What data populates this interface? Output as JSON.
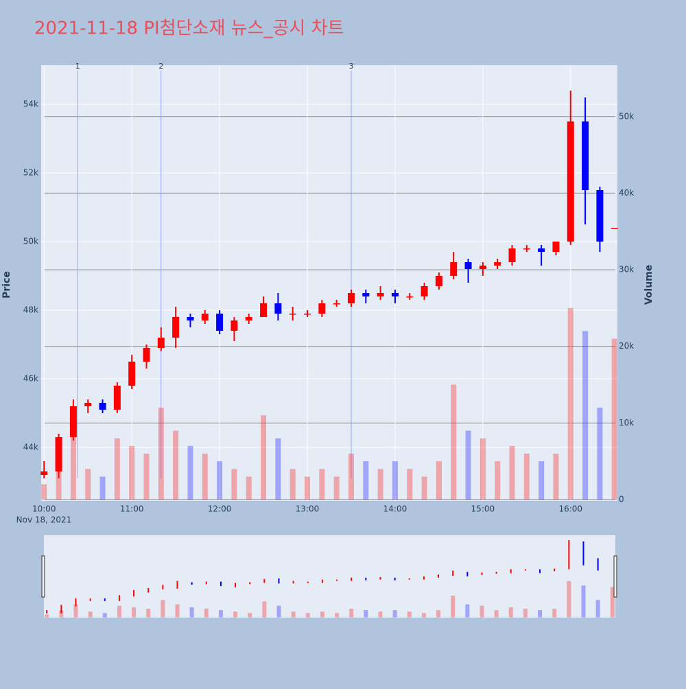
{
  "chart_data": {
    "type": "candlestick",
    "title": "2021-11-18 PI첨단소재 뉴스_공시 차트",
    "y_label": "Price",
    "y2_label": "Volume",
    "x_date_label": "Nov 18, 2021",
    "up_color": "#ff0000",
    "down_color": "#0000ff",
    "x": [
      "2021-11-18 10:00",
      "2021-11-18 10:10",
      "2021-11-18 10:20",
      "2021-11-18 10:30",
      "2021-11-18 10:40",
      "2021-11-18 10:50",
      "2021-11-18 11:00",
      "2021-11-18 11:10",
      "2021-11-18 11:20",
      "2021-11-18 11:30",
      "2021-11-18 11:40",
      "2021-11-18 11:50",
      "2021-11-18 12:00",
      "2021-11-18 12:10",
      "2021-11-18 12:20",
      "2021-11-18 12:30",
      "2021-11-18 12:40",
      "2021-11-18 12:50",
      "2021-11-18 13:00",
      "2021-11-18 13:10",
      "2021-11-18 13:20",
      "2021-11-18 13:30",
      "2021-11-18 13:40",
      "2021-11-18 13:50",
      "2021-11-18 14:00",
      "2021-11-18 14:10",
      "2021-11-18 14:20",
      "2021-11-18 14:30",
      "2021-11-18 14:40",
      "2021-11-18 14:50",
      "2021-11-18 15:00",
      "2021-11-18 15:10",
      "2021-11-18 15:20",
      "2021-11-18 15:30",
      "2021-11-18 15:40",
      "2021-11-18 15:50",
      "2021-11-18 16:00",
      "2021-11-18 16:10",
      "2021-11-18 16:20",
      "2021-11-18 16:30"
    ],
    "open": [
      43200,
      43300,
      44300,
      45200,
      45300,
      45100,
      45800,
      46500,
      46900,
      47200,
      47800,
      47700,
      47900,
      47400,
      47700,
      47800,
      48200,
      47900,
      47900,
      47900,
      48200,
      48200,
      48500,
      48400,
      48500,
      48400,
      48400,
      48700,
      49000,
      49400,
      49200,
      49300,
      49400,
      49800,
      49800,
      49700,
      50000,
      53500,
      51500,
      50400
    ],
    "high": [
      43600,
      44400,
      45400,
      45400,
      45400,
      45900,
      46700,
      47000,
      47500,
      48100,
      47900,
      48000,
      48000,
      47800,
      47900,
      48400,
      48500,
      48100,
      48000,
      48300,
      48300,
      48600,
      48600,
      48700,
      48600,
      48500,
      48800,
      49100,
      49700,
      49500,
      49400,
      49500,
      49900,
      49900,
      49900,
      50000,
      54400,
      54200,
      51600,
      50400
    ],
    "low": [
      43100,
      43100,
      44200,
      45000,
      45000,
      45000,
      45700,
      46300,
      46800,
      46900,
      47500,
      47600,
      47300,
      47100,
      47600,
      47800,
      47700,
      47700,
      47800,
      47800,
      48100,
      48100,
      48200,
      48300,
      48200,
      48300,
      48300,
      48600,
      48900,
      48800,
      49000,
      49200,
      49300,
      49700,
      49300,
      49600,
      49900,
      50500,
      49700,
      50400
    ],
    "close": [
      43300,
      44300,
      45200,
      45300,
      45100,
      45800,
      46500,
      46900,
      47200,
      47800,
      47700,
      47900,
      47400,
      47700,
      47800,
      48200,
      47900,
      47900,
      47900,
      48200,
      48200,
      48500,
      48400,
      48500,
      48400,
      48400,
      48700,
      49000,
      49400,
      49200,
      49300,
      49400,
      49800,
      49800,
      49700,
      50000,
      53500,
      51500,
      50000,
      50400
    ],
    "volume": [
      2000,
      5000,
      9000,
      4000,
      3000,
      8000,
      7000,
      6000,
      12000,
      9000,
      7000,
      6000,
      5000,
      4000,
      3000,
      11000,
      8000,
      4000,
      3000,
      4000,
      3000,
      6000,
      5000,
      4000,
      5000,
      4000,
      3000,
      5000,
      15000,
      9000,
      8000,
      5000,
      7000,
      6000,
      5000,
      6000,
      25000,
      22000,
      12000,
      21000
    ],
    "xlim": [
      "2021-11-18 09:58",
      "2021-11-18 16:32"
    ],
    "xticks": [
      {
        "value": "2021-11-18 10:00",
        "label": "10:00"
      },
      {
        "value": "2021-11-18 11:00",
        "label": "11:00"
      },
      {
        "value": "2021-11-18 12:00",
        "label": "12:00"
      },
      {
        "value": "2021-11-18 13:00",
        "label": "13:00"
      },
      {
        "value": "2021-11-18 14:00",
        "label": "14:00"
      },
      {
        "value": "2021-11-18 15:00",
        "label": "15:00"
      },
      {
        "value": "2021-11-18 16:00",
        "label": "16:00"
      }
    ],
    "ylim": [
      42440,
      55140
    ],
    "yticks": [
      {
        "value": 44000,
        "label": "44k"
      },
      {
        "value": 46000,
        "label": "46k"
      },
      {
        "value": 48000,
        "label": "48k"
      },
      {
        "value": 50000,
        "label": "50k"
      },
      {
        "value": 52000,
        "label": "52k"
      },
      {
        "value": 54000,
        "label": "54k"
      }
    ],
    "y2lim": [
      -180,
      56700
    ],
    "y2ticks": [
      0,
      {
        "value": 10000,
        "label": "10k"
      },
      {
        "value": 20000,
        "label": "20k"
      },
      {
        "value": 30000,
        "label": "30k"
      },
      {
        "value": 40000,
        "label": "40k"
      },
      {
        "value": 50000,
        "label": "50k"
      }
    ],
    "annotations": [
      {
        "x": "2021-11-18 10:23",
        "text": "1"
      },
      {
        "x": "2021-11-18 11:20",
        "text": "2"
      },
      {
        "x": "2021-11-18 13:30",
        "text": "3"
      }
    ]
  }
}
